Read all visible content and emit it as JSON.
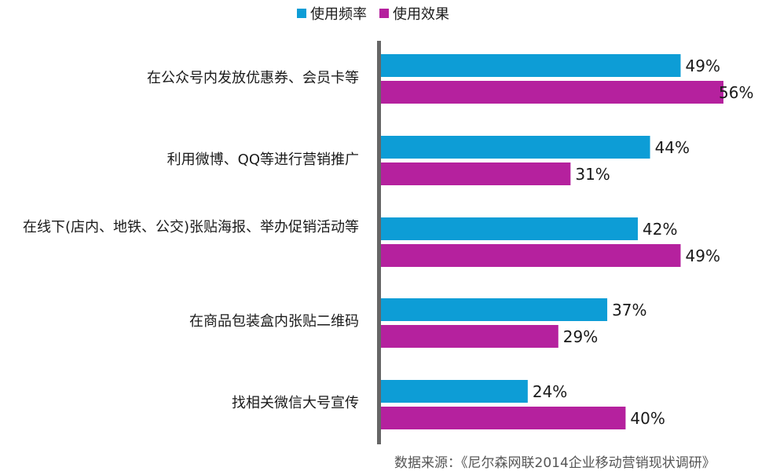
{
  "chart_data": {
    "type": "bar",
    "orientation": "horizontal",
    "categories": [
      "在公众号内发放优惠券、会员卡等",
      "利用微博、QQ等进行营销推广",
      "在线下(店内、地铁、公交)张贴海报、举办促销活动等",
      "在商品包装盒内张贴二维码",
      "找相关微信大号宣传"
    ],
    "series": [
      {
        "name": "使用频率",
        "values": [
          49,
          44,
          42,
          37,
          24
        ],
        "color": "#0d9dd6"
      },
      {
        "name": "使用效果",
        "values": [
          56,
          31,
          49,
          29,
          40
        ],
        "color": "#b5219e"
      }
    ],
    "value_suffix": "%",
    "xlim": [
      0,
      56
    ],
    "legend": "top-center",
    "grid": false
  },
  "source": "数据来源：《尼尔森网联2014企业移动营销现状调研》"
}
